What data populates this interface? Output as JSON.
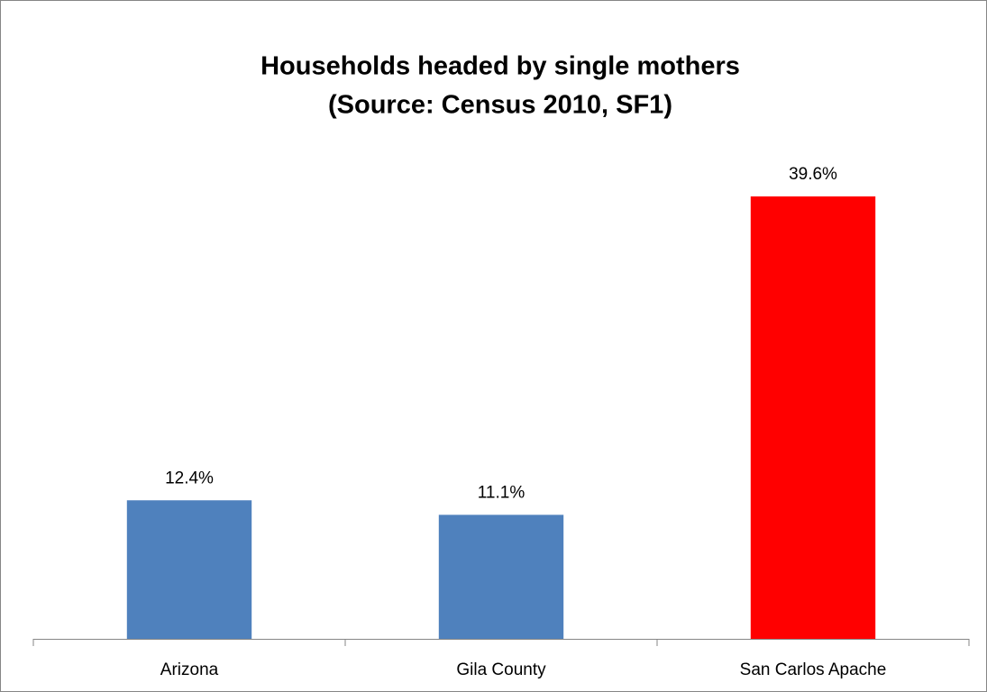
{
  "chart_data": {
    "type": "bar",
    "title": "Households headed by single mothers",
    "subtitle": "(Source: Census 2010, SF1)",
    "categories": [
      "Arizona",
      "Gila County",
      "San Carlos Apache"
    ],
    "values": [
      12.4,
      11.1,
      39.6
    ],
    "value_labels": [
      "12.4%",
      "11.1%",
      "39.6%"
    ],
    "colors": [
      "#4f81bd",
      "#4f81bd",
      "#ff0000"
    ]
  }
}
